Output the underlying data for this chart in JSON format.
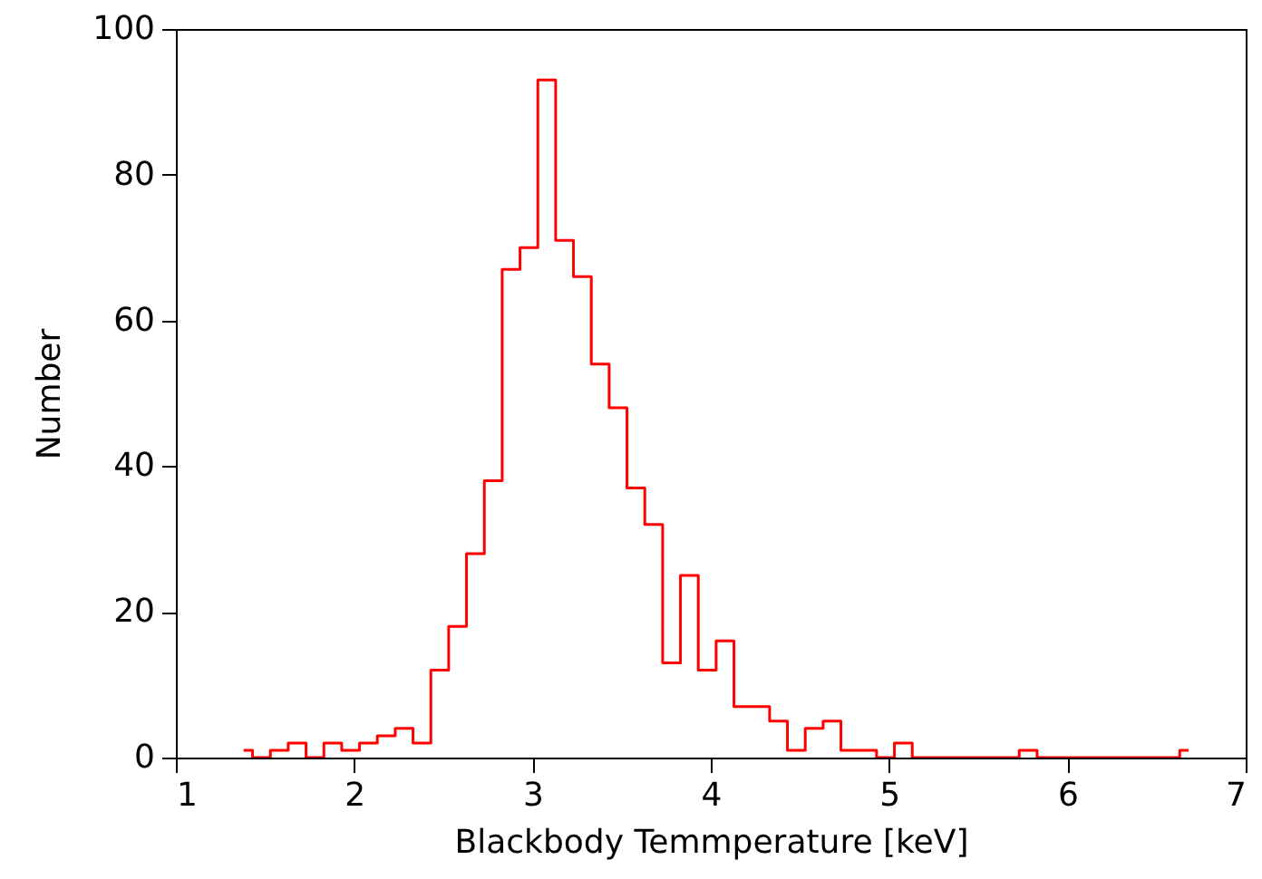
{
  "chart_data": {
    "type": "histogram",
    "xlabel": "Blackbody Temmperature [keV]",
    "ylabel": "Number",
    "color": "#ff0000",
    "bins": [
      1.38,
      1.43,
      1.53,
      1.63,
      1.73,
      1.83,
      1.93,
      2.03,
      2.13,
      2.23,
      2.33,
      2.43,
      2.53,
      2.63,
      2.73,
      2.83,
      2.93,
      3.03,
      3.13,
      3.23,
      3.33,
      3.43,
      3.53,
      3.63,
      3.73,
      3.83,
      3.93,
      4.03,
      4.13,
      4.23,
      4.33,
      4.43,
      4.53,
      4.63,
      4.73,
      4.83,
      4.93,
      5.03,
      5.13,
      5.23,
      5.33,
      5.43,
      5.53,
      5.63,
      5.73,
      5.83,
      5.93,
      6.03,
      6.13,
      6.23,
      6.33,
      6.43,
      6.53,
      6.63,
      6.68
    ],
    "values": [
      1,
      0,
      1,
      2,
      0,
      2,
      1,
      2,
      3,
      4,
      2,
      12,
      18,
      28,
      38,
      67,
      70,
      93,
      71,
      66,
      54,
      48,
      37,
      32,
      13,
      25,
      12,
      16,
      7,
      7,
      5,
      1,
      4,
      5,
      1,
      1,
      0,
      2,
      0,
      0,
      0,
      0,
      0,
      0,
      1,
      0,
      0,
      0,
      0,
      0,
      0,
      0,
      0,
      1
    ],
    "xlim": [
      1,
      7
    ],
    "xticks": [
      1,
      2,
      3,
      4,
      5,
      6,
      7
    ],
    "ylim": [
      0,
      100
    ],
    "yticks": [
      0,
      20,
      40,
      60,
      80,
      100
    ]
  }
}
